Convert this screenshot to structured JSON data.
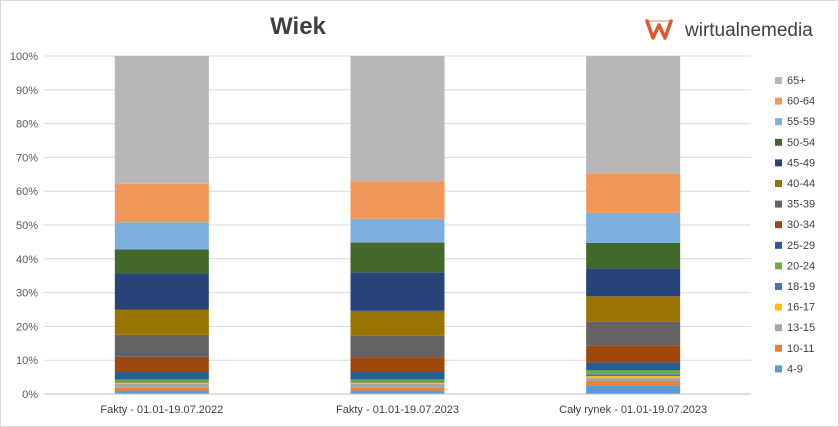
{
  "brand": {
    "name": "wirtualnemedia",
    "color": "#e2572a",
    "icon": "wm-logo-icon"
  },
  "chart_data": {
    "type": "bar",
    "stacked": true,
    "title": "Wiek",
    "xlabel": "",
    "ylabel": "",
    "ylim": [
      0,
      100
    ],
    "y_ticks": [
      "0%",
      "10%",
      "20%",
      "30%",
      "40%",
      "50%",
      "60%",
      "70%",
      "80%",
      "90%",
      "100%"
    ],
    "grid": true,
    "legend_position": "right",
    "categories": [
      "Fakty - 01.01-19.07.2022",
      "Fakty - 01.01-19.07.2023",
      "Cały rynek - 01.01-19.07.2023"
    ],
    "series": [
      {
        "name": "4-9",
        "color": "#5b9bd5",
        "values": [
          1.0,
          1.0,
          2.6
        ]
      },
      {
        "name": "10-11",
        "color": "#ed7d31",
        "values": [
          0.8,
          0.8,
          1.1
        ]
      },
      {
        "name": "13-15",
        "color": "#a5a5a5",
        "values": [
          1.2,
          1.2,
          1.0
        ]
      },
      {
        "name": "16-17",
        "color": "#ffc000",
        "values": [
          0.4,
          0.4,
          0.6
        ]
      },
      {
        "name": "18-19",
        "color": "#4472c4",
        "values": [
          0.3,
          0.3,
          0.5
        ]
      },
      {
        "name": "20-24",
        "color": "#70ad47",
        "values": [
          0.6,
          0.6,
          1.2
        ]
      },
      {
        "name": "25-29",
        "color": "#255e91",
        "values": [
          2.2,
          2.2,
          2.3
        ]
      },
      {
        "name": "30-34",
        "color": "#9e480e",
        "values": [
          4.5,
          4.4,
          5.1
        ]
      },
      {
        "name": "35-39",
        "color": "#636363",
        "values": [
          6.5,
          6.3,
          7.0
        ]
      },
      {
        "name": "40-44",
        "color": "#997300",
        "values": [
          7.5,
          7.4,
          7.5
        ]
      },
      {
        "name": "45-49",
        "color": "#264478",
        "values": [
          10.5,
          11.4,
          8.3
        ]
      },
      {
        "name": "50-54",
        "color": "#43682b",
        "values": [
          7.3,
          8.8,
          7.5
        ]
      },
      {
        "name": "55-59",
        "color": "#7cafdd",
        "values": [
          8.0,
          7.0,
          8.9
        ]
      },
      {
        "name": "60-64",
        "color": "#f1975a",
        "values": [
          11.4,
          11.1,
          11.5
        ]
      },
      {
        "name": "65+",
        "color": "#b7b7b7",
        "values": [
          37.8,
          37.1,
          34.9
        ]
      }
    ]
  }
}
